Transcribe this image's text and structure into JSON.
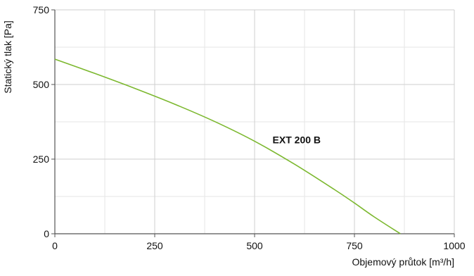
{
  "chart_data": {
    "type": "line",
    "title": "",
    "xlabel": "Objemový průtok [m³/h]",
    "ylabel": "Statický tlak [Pa]",
    "xlim": [
      0,
      1000
    ],
    "ylim": [
      0,
      750
    ],
    "x_ticks": [
      0,
      250,
      500,
      750,
      1000
    ],
    "y_ticks": [
      0,
      250,
      500,
      750
    ],
    "grid": true,
    "minor_grid": true,
    "legend": "none",
    "series": [
      {
        "name": "EXT 200 B",
        "color": "#7cb82f",
        "label_at": [
          545,
          315
        ],
        "x": [
          0,
          100,
          200,
          300,
          400,
          500,
          600,
          700,
          750,
          800,
          865
        ],
        "y": [
          585,
          537,
          487,
          434,
          376,
          310,
          233,
          148,
          103,
          56,
          0
        ]
      }
    ]
  }
}
